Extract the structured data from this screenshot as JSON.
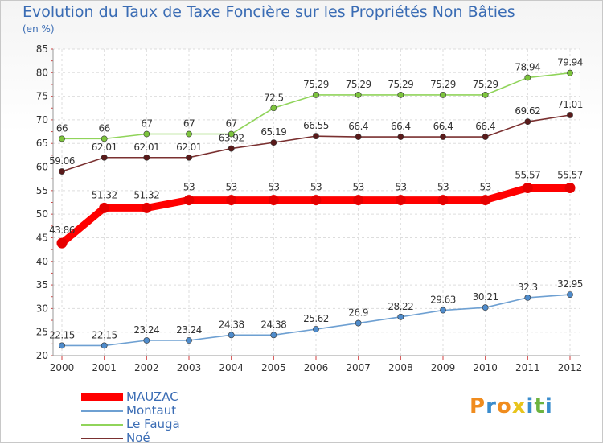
{
  "logo": {
    "text": "Proxiti",
    "letters": [
      "P",
      "r",
      "o",
      "x",
      "i",
      "t",
      "i"
    ],
    "colors": [
      "#f08c1e",
      "#3a8ccd",
      "#f08c1e",
      "#e8c41c",
      "#3a8ccd",
      "#6db33f",
      "#3a8ccd"
    ]
  },
  "chart_data": {
    "type": "line",
    "title": "Evolution du Taux de Taxe Foncière sur les Propriétés Non Bâties",
    "subtitle": "(en %)",
    "xlabel": "",
    "ylabel": "",
    "ylim": [
      20,
      85
    ],
    "yticks": [
      20,
      25,
      30,
      35,
      40,
      45,
      50,
      55,
      60,
      65,
      70,
      75,
      80,
      85
    ],
    "grid": true,
    "legend_position": "bottom-left",
    "x": [
      "2000",
      "2001",
      "2002",
      "2003",
      "2004",
      "2005",
      "2006",
      "2007",
      "2008",
      "2009",
      "2010",
      "2011",
      "2012"
    ],
    "series": [
      {
        "name": "MAUZAC",
        "color": "#ff0000",
        "marker_color": "#e60000",
        "values": [
          43.86,
          51.32,
          51.32,
          53,
          53,
          53,
          53,
          53,
          53,
          53,
          53,
          55.57,
          55.57
        ],
        "labels": [
          "43.86",
          "51.32",
          "51.32",
          "53",
          "53",
          "53",
          "53",
          "53",
          "53",
          "53",
          "53",
          "55.57",
          "55.57"
        ]
      },
      {
        "name": "Montaut",
        "color": "#6ea0d2",
        "marker_color": "#4f8ccc",
        "values": [
          22.15,
          22.15,
          23.24,
          23.24,
          24.38,
          24.38,
          25.62,
          26.9,
          28.22,
          29.63,
          30.21,
          32.3,
          32.95
        ],
        "labels": [
          "22.15",
          "22.15",
          "23.24",
          "23.24",
          "24.38",
          "24.38",
          "25.62",
          "26.9",
          "28.22",
          "29.63",
          "30.21",
          "32.3",
          "32.95"
        ]
      },
      {
        "name": "Le Fauga",
        "color": "#90d45a",
        "marker_color": "#7cc43c",
        "values": [
          66,
          66,
          67,
          67,
          67,
          72.5,
          75.29,
          75.29,
          75.29,
          75.29,
          75.29,
          78.94,
          79.94
        ],
        "labels": [
          "66",
          "66",
          "67",
          "67",
          "67",
          "72.5",
          "75.29",
          "75.29",
          "75.29",
          "75.29",
          "75.29",
          "78.94",
          "79.94"
        ]
      },
      {
        "name": "Noé",
        "color": "#7a3030",
        "marker_color": "#5a1a1a",
        "values": [
          59.06,
          62.01,
          62.01,
          62.01,
          63.92,
          65.19,
          66.55,
          66.4,
          66.4,
          66.4,
          66.4,
          69.62,
          71.01
        ],
        "labels": [
          "59.06",
          "62.01",
          "62.01",
          "62.01",
          "63.92",
          "65.19",
          "66.55",
          "66.4",
          "66.4",
          "66.4",
          "66.4",
          "69.62",
          "71.01"
        ]
      }
    ]
  }
}
